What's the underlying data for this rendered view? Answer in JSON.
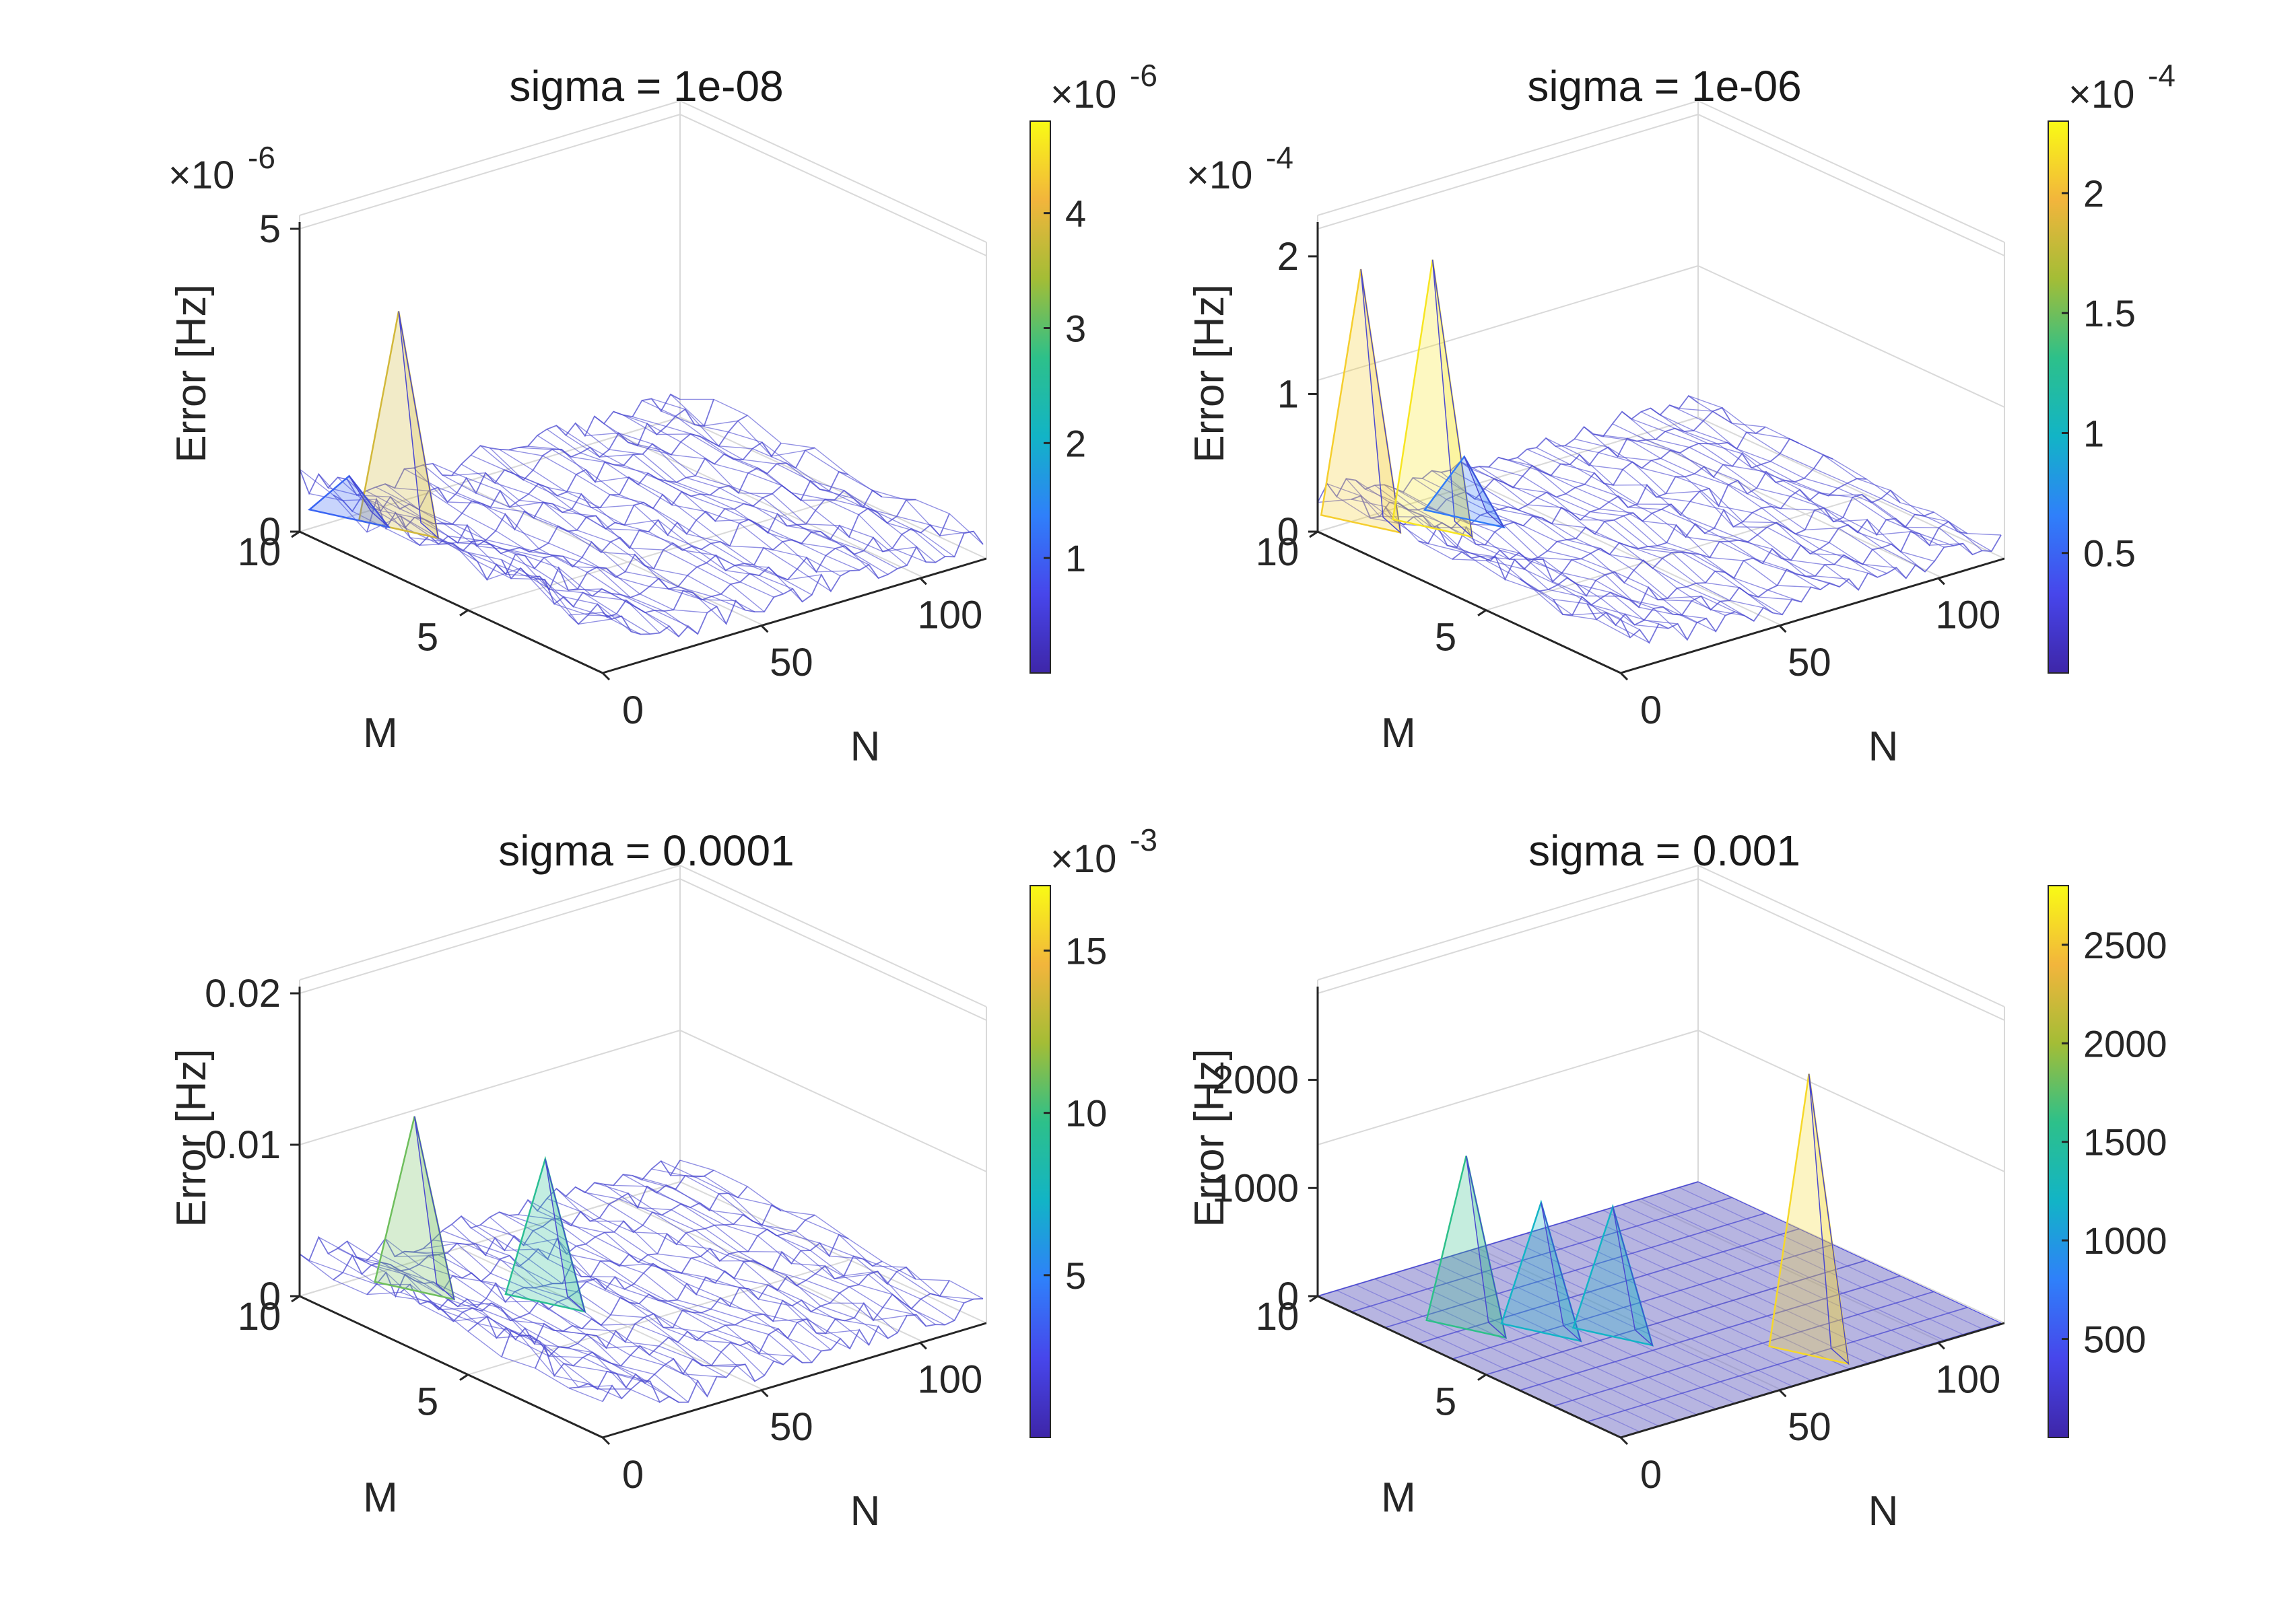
{
  "figure": {
    "colormap": [
      "#3e26a8",
      "#4746eb",
      "#2f80fa",
      "#12b4c6",
      "#2dc08a",
      "#a3bd36",
      "#f2b53c",
      "#f9fb15"
    ]
  },
  "chart_data": [
    {
      "type": "surface3d",
      "title": "sigma = 1e-08",
      "zlabel": "Error [Hz]",
      "mlabel": "M",
      "nlabel": "N",
      "m_ticks": [
        "10",
        "5"
      ],
      "n_ticks": [
        "0",
        "50",
        "100"
      ],
      "z_ticks": [
        "0",
        "5"
      ],
      "z_multiplier": "×10",
      "z_multiplier_exp": "-6",
      "z_range": [
        0,
        5e-06
      ],
      "colorbar": {
        "ticks": [
          "1",
          "2",
          "3",
          "4"
        ],
        "multiplier": "×10",
        "multiplier_exp": "-6",
        "range": [
          0,
          4.8
        ]
      },
      "peaks": [
        {
          "m": 8,
          "n": 10,
          "value": 4e-06
        },
        {
          "m": 9,
          "n": 5,
          "value": 1.1e-06
        }
      ],
      "baseline": 8e-07
    },
    {
      "type": "surface3d",
      "title": "sigma = 1e-06",
      "zlabel": "Error [Hz]",
      "mlabel": "M",
      "nlabel": "N",
      "m_ticks": [
        "10",
        "5"
      ],
      "n_ticks": [
        "0",
        "50",
        "100"
      ],
      "z_ticks": [
        "0",
        "1",
        "2"
      ],
      "z_multiplier": "×10",
      "z_multiplier_exp": "-4",
      "z_range": [
        0,
        0.00022
      ],
      "colorbar": {
        "ticks": [
          "0.5",
          "1",
          "1.5",
          "2"
        ],
        "multiplier": "×10",
        "multiplier_exp": "-4",
        "range": [
          0,
          2.3
        ]
      },
      "peaks": [
        {
          "m": 9,
          "n": 3,
          "value": 0.0002
        },
        {
          "m": 8,
          "n": 15,
          "value": 0.00021
        },
        {
          "m": 8,
          "n": 25,
          "value": 6e-05
        }
      ],
      "baseline": 3e-05
    },
    {
      "type": "surface3d",
      "title": "sigma = 0.0001",
      "zlabel": "Error [Hz]",
      "mlabel": "M",
      "nlabel": "N",
      "m_ticks": [
        "10",
        "5"
      ],
      "n_ticks": [
        "0",
        "50",
        "100"
      ],
      "z_ticks": [
        "0",
        "0.01",
        "0.02"
      ],
      "z_multiplier": "",
      "z_multiplier_exp": "",
      "z_range": [
        0,
        0.02
      ],
      "colorbar": {
        "ticks": [
          "5",
          "10",
          "15"
        ],
        "multiplier": "×10",
        "multiplier_exp": "-3",
        "range": [
          0,
          17
        ]
      },
      "peaks": [
        {
          "m": 8,
          "n": 15,
          "value": 0.013
        },
        {
          "m": 6,
          "n": 35,
          "value": 0.011
        }
      ],
      "baseline": 0.003
    },
    {
      "type": "surface3d",
      "title": "sigma = 0.001",
      "zlabel": "Error [Hz]",
      "mlabel": "M",
      "nlabel": "N",
      "m_ticks": [
        "10",
        "5"
      ],
      "n_ticks": [
        "0",
        "50",
        "100"
      ],
      "z_ticks": [
        "0",
        "1000",
        "2000"
      ],
      "z_multiplier": "",
      "z_multiplier_exp": "",
      "z_range": [
        0,
        2800
      ],
      "colorbar": {
        "ticks": [
          "500",
          "1000",
          "1500",
          "2000",
          "2500"
        ],
        "multiplier": "",
        "multiplier_exp": "",
        "range": [
          0,
          2800
        ]
      },
      "peaks": [
        {
          "m": 7,
          "n": 15,
          "value": 1600
        },
        {
          "m": 6,
          "n": 28,
          "value": 1200
        },
        {
          "m": 5,
          "n": 40,
          "value": 1200
        },
        {
          "m": 2,
          "n": 70,
          "value": 2600
        }
      ],
      "baseline": 0
    }
  ]
}
